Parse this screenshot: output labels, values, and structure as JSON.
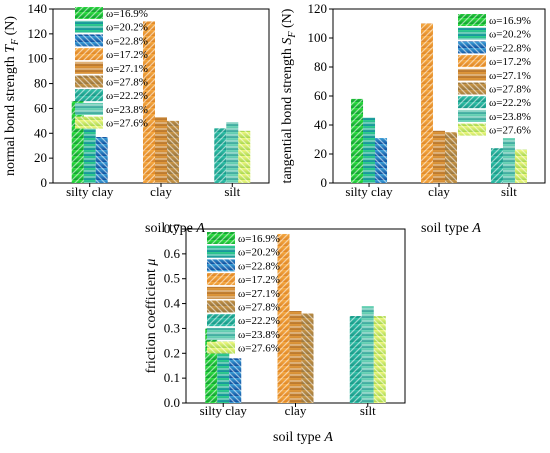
{
  "colors": {
    "green_series": [
      "#1ec23a",
      "#1ebc8a",
      "#1c7dc4"
    ],
    "orange_series": [
      "#f0a030",
      "#d89036",
      "#b8843e"
    ],
    "teal_series": [
      "#20b0a0",
      "#5cc8b0",
      "#c8e870"
    ]
  },
  "legend_entries": [
    "ω=16.9%",
    "ω=20.2%",
    "ω=22.8%",
    "ω=17.2%",
    "ω=27.1%",
    "ω=27.8%",
    "ω=22.2%",
    "ω=23.8%",
    "ω=27.6%"
  ],
  "chart_data": [
    {
      "type": "bar",
      "categories": [
        "silty clay",
        "clay",
        "silt"
      ],
      "xlabel": "soil type",
      "xlabel_var": "A",
      "ylabel": "normal bond strength",
      "ylabel_var": "T",
      "ylabel_sub": "F",
      "ylabel_unit": "(N)",
      "ylim": [
        0,
        140
      ],
      "yticks": [
        0,
        20,
        40,
        60,
        80,
        100,
        120,
        140
      ],
      "series": [
        {
          "name": "ω=16.9%",
          "category": "silty clay",
          "value": 66
        },
        {
          "name": "ω=20.2%",
          "category": "silty clay",
          "value": 52
        },
        {
          "name": "ω=22.8%",
          "category": "silty clay",
          "value": 37
        },
        {
          "name": "ω=17.2%",
          "category": "clay",
          "value": 130
        },
        {
          "name": "ω=27.1%",
          "category": "clay",
          "value": 53
        },
        {
          "name": "ω=27.8%",
          "category": "clay",
          "value": 50
        },
        {
          "name": "ω=22.2%",
          "category": "silt",
          "value": 44
        },
        {
          "name": "ω=23.8%",
          "category": "silt",
          "value": 49
        },
        {
          "name": "ω=27.6%",
          "category": "silt",
          "value": 42
        }
      ]
    },
    {
      "type": "bar",
      "categories": [
        "silty clay",
        "clay",
        "silt"
      ],
      "xlabel": "soil type",
      "xlabel_var": "A",
      "ylabel": "tangential bond strength",
      "ylabel_var": "S",
      "ylabel_sub": "F",
      "ylabel_unit": "(N)",
      "ylim": [
        0,
        120
      ],
      "yticks": [
        0,
        20,
        40,
        60,
        80,
        100,
        120
      ],
      "series": [
        {
          "name": "ω=16.9%",
          "category": "silty clay",
          "value": 58
        },
        {
          "name": "ω=20.2%",
          "category": "silty clay",
          "value": 45
        },
        {
          "name": "ω=22.8%",
          "category": "silty clay",
          "value": 31
        },
        {
          "name": "ω=17.2%",
          "category": "clay",
          "value": 110
        },
        {
          "name": "ω=27.1%",
          "category": "clay",
          "value": 36
        },
        {
          "name": "ω=27.8%",
          "category": "clay",
          "value": 35
        },
        {
          "name": "ω=22.2%",
          "category": "silt",
          "value": 24
        },
        {
          "name": "ω=23.8%",
          "category": "silt",
          "value": 31
        },
        {
          "name": "ω=27.6%",
          "category": "silt",
          "value": 23
        }
      ]
    },
    {
      "type": "bar",
      "categories": [
        "silty clay",
        "clay",
        "silt"
      ],
      "xlabel": "soil type",
      "xlabel_var": "A",
      "ylabel": "friction coefficient",
      "ylabel_var": "μ",
      "ylabel_sub": "",
      "ylabel_unit": "",
      "ylim": [
        0,
        0.7
      ],
      "yticks": [
        0.0,
        0.1,
        0.2,
        0.3,
        0.4,
        0.5,
        0.6,
        0.7
      ],
      "series": [
        {
          "name": "ω=16.9%",
          "category": "silty clay",
          "value": 0.3
        },
        {
          "name": "ω=20.2%",
          "category": "silty clay",
          "value": 0.24
        },
        {
          "name": "ω=22.8%",
          "category": "silty clay",
          "value": 0.18
        },
        {
          "name": "ω=17.2%",
          "category": "clay",
          "value": 0.68
        },
        {
          "name": "ω=27.1%",
          "category": "clay",
          "value": 0.37
        },
        {
          "name": "ω=27.8%",
          "category": "clay",
          "value": 0.36
        },
        {
          "name": "ω=22.2%",
          "category": "silt",
          "value": 0.35
        },
        {
          "name": "ω=23.8%",
          "category": "silt",
          "value": 0.39
        },
        {
          "name": "ω=27.6%",
          "category": "silt",
          "value": 0.35
        }
      ]
    }
  ]
}
